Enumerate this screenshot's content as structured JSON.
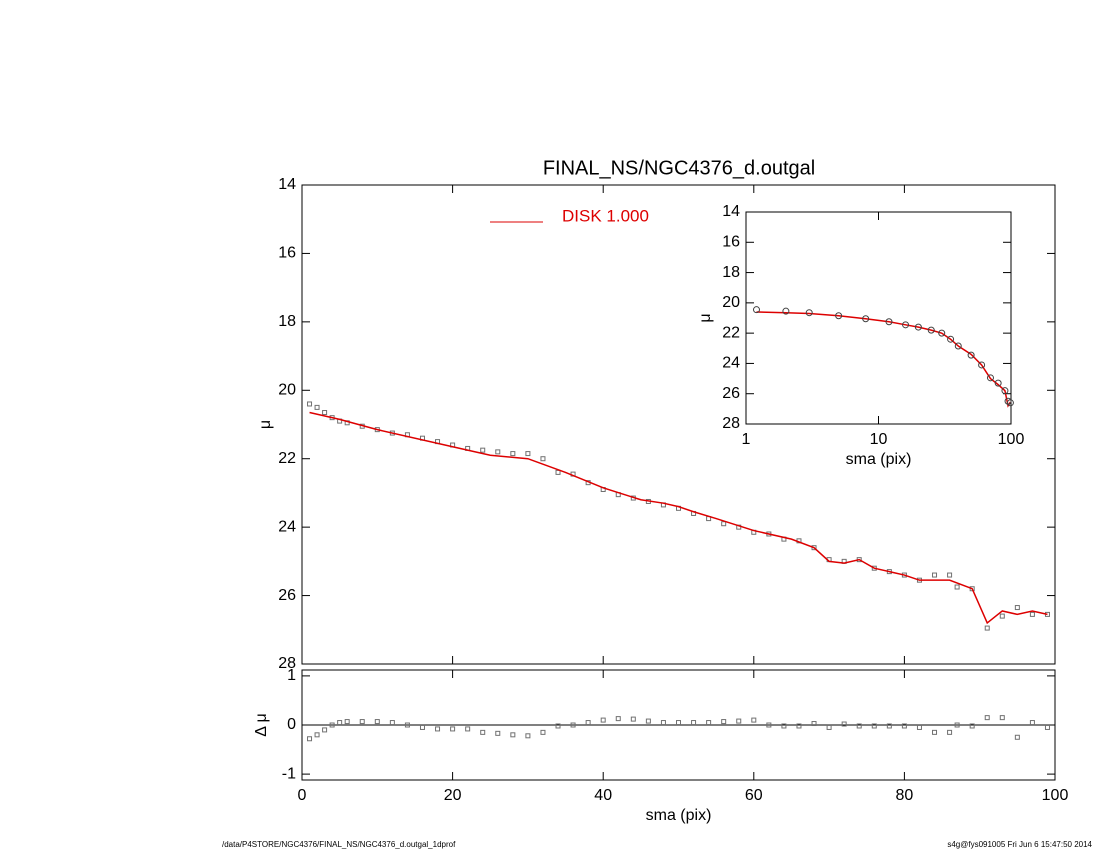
{
  "chart_data": [
    {
      "type": "scatter",
      "title": "FINAL_NS/NGC4376_d.outgal",
      "ylabel": "μ",
      "xlim": [
        0,
        100
      ],
      "ylim": [
        28,
        14
      ],
      "xticks": [
        0,
        20,
        40,
        60,
        80,
        100
      ],
      "yticks": [
        14,
        16,
        18,
        20,
        22,
        24,
        26,
        28
      ],
      "series": [
        {
          "color": "#707070",
          "marker": "square",
          "x": [
            1,
            2,
            3,
            4,
            5,
            6,
            8,
            10,
            12,
            14,
            16,
            18,
            20,
            22,
            24,
            26,
            28,
            30,
            32,
            34,
            36,
            38,
            40,
            42,
            44,
            46,
            48,
            50,
            52,
            54,
            56,
            58,
            60,
            62,
            64,
            66,
            68,
            70,
            72,
            74,
            76,
            78,
            80,
            82,
            84,
            86,
            87,
            89,
            91,
            93,
            95,
            97,
            99
          ],
          "values": [
            20.4,
            20.5,
            20.65,
            20.8,
            20.9,
            20.95,
            21.05,
            21.15,
            21.25,
            21.3,
            21.4,
            21.5,
            21.6,
            21.7,
            21.75,
            21.8,
            21.85,
            21.85,
            22.0,
            22.4,
            22.45,
            22.7,
            22.9,
            23.05,
            23.15,
            23.25,
            23.35,
            23.45,
            23.6,
            23.75,
            23.9,
            24.0,
            24.15,
            24.2,
            24.35,
            24.4,
            24.6,
            24.95,
            25.0,
            24.95,
            25.2,
            25.3,
            25.4,
            25.55,
            25.4,
            25.4,
            25.75,
            25.8,
            26.95,
            26.6,
            26.35,
            26.55,
            26.55
          ]
        },
        {
          "name": "DISK  1.000",
          "color": "#dd0000",
          "line": true,
          "x": [
            1,
            5,
            10,
            20,
            25,
            30,
            35,
            40,
            45,
            48,
            50,
            52,
            55,
            60,
            65,
            68,
            70,
            72,
            74,
            76,
            80,
            82,
            86,
            89,
            91,
            93,
            95,
            97,
            99
          ],
          "values": [
            20.65,
            20.85,
            21.15,
            21.65,
            21.9,
            22.0,
            22.4,
            22.85,
            23.2,
            23.3,
            23.4,
            23.55,
            23.75,
            24.1,
            24.35,
            24.6,
            25.0,
            25.05,
            24.95,
            25.2,
            25.4,
            25.55,
            25.55,
            25.8,
            26.8,
            26.45,
            26.55,
            26.45,
            26.55
          ]
        }
      ]
    },
    {
      "type": "scatter",
      "xlabel": "sma (pix)",
      "ylabel": "μ",
      "xscale": "log",
      "xlim": [
        1,
        100
      ],
      "ylim": [
        28,
        14
      ],
      "xticks": [
        1,
        10,
        100
      ],
      "yticks": [
        14,
        16,
        18,
        20,
        22,
        24,
        26,
        28
      ],
      "series": [
        {
          "color": "#dd0000",
          "line": true,
          "x": [
            1.2,
            2,
            3,
            5,
            8,
            12,
            16,
            20,
            25,
            30,
            35,
            40,
            50,
            60,
            70,
            80,
            90,
            95,
            99
          ],
          "values": [
            20.6,
            20.65,
            20.7,
            20.85,
            21.05,
            21.25,
            21.45,
            21.6,
            21.8,
            22.0,
            22.4,
            22.85,
            23.4,
            24.1,
            25.0,
            25.4,
            25.8,
            26.8,
            26.55
          ]
        },
        {
          "color": "#404040",
          "marker": "circle",
          "x": [
            1.2,
            2,
            3,
            5,
            8,
            12,
            16,
            20,
            25,
            30,
            35,
            40,
            50,
            60,
            70,
            80,
            90,
            95,
            99
          ],
          "values": [
            20.45,
            20.55,
            20.65,
            20.85,
            21.05,
            21.25,
            21.45,
            21.6,
            21.8,
            22.0,
            22.4,
            22.85,
            23.45,
            24.1,
            24.95,
            25.3,
            25.8,
            26.5,
            26.6
          ]
        }
      ]
    },
    {
      "type": "scatter",
      "xlabel": "sma (pix)",
      "ylabel": "Δ μ",
      "reference_line": 0,
      "xlim": [
        0,
        100
      ],
      "ylim": [
        -1.12,
        1.12
      ],
      "xticks": [
        0,
        20,
        40,
        60,
        80,
        100
      ],
      "yticks": [
        1,
        0,
        -1
      ],
      "series": [
        {
          "color": "#707070",
          "marker": "square",
          "x": [
            1,
            2,
            3,
            4,
            5,
            6,
            8,
            10,
            12,
            14,
            16,
            18,
            20,
            22,
            24,
            26,
            28,
            30,
            32,
            34,
            36,
            38,
            40,
            42,
            44,
            46,
            48,
            50,
            52,
            54,
            56,
            58,
            60,
            62,
            64,
            66,
            68,
            70,
            72,
            74,
            76,
            78,
            80,
            82,
            84,
            86,
            87,
            89,
            91,
            93,
            95,
            97,
            99
          ],
          "values": [
            -0.28,
            -0.2,
            -0.1,
            0.0,
            0.05,
            0.07,
            0.07,
            0.07,
            0.05,
            0.0,
            -0.05,
            -0.08,
            -0.08,
            -0.08,
            -0.15,
            -0.17,
            -0.2,
            -0.22,
            -0.15,
            -0.02,
            0.0,
            0.05,
            0.1,
            0.13,
            0.12,
            0.08,
            0.05,
            0.05,
            0.05,
            0.05,
            0.07,
            0.08,
            0.1,
            0.0,
            -0.02,
            -0.02,
            0.03,
            -0.05,
            0.02,
            -0.02,
            -0.02,
            -0.02,
            -0.02,
            -0.05,
            -0.15,
            -0.15,
            0.0,
            -0.02,
            0.15,
            0.15,
            -0.25,
            0.05,
            -0.05
          ]
        }
      ]
    }
  ],
  "footer": {
    "left": "/data/P4STORE/NGC4376/FINAL_NS/NGC4376_d.outgal_1dprof",
    "right": "s4g@fys091005  Fri Jun  6 15:47:50 2014"
  }
}
